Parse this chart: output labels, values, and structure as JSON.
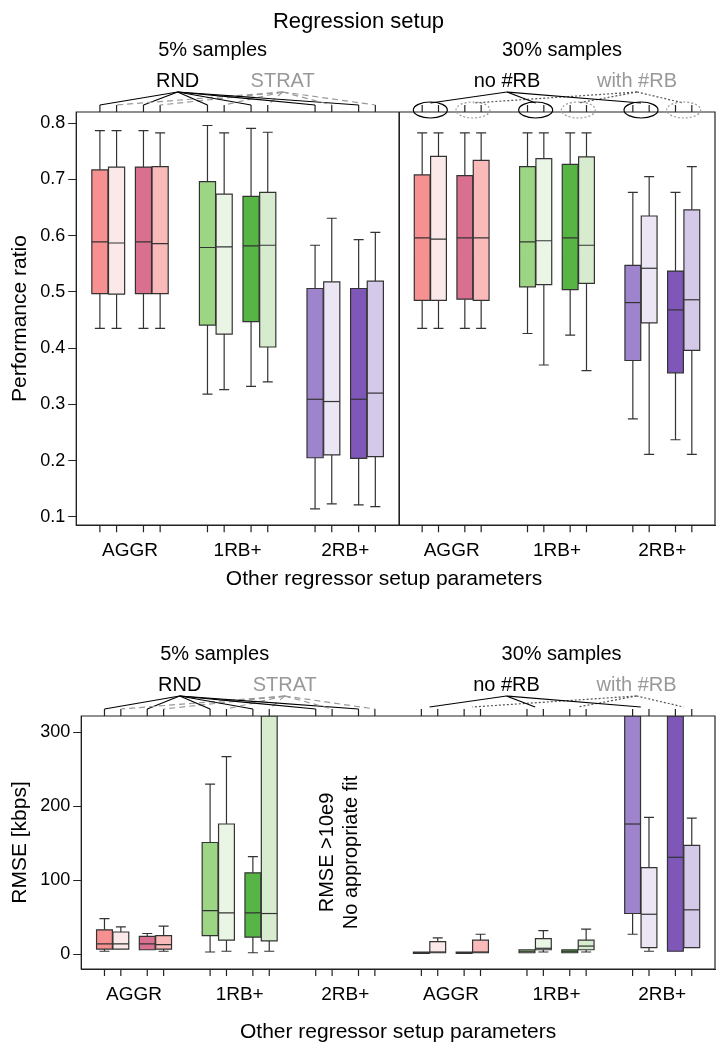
{
  "chart_data": [
    {
      "type": "box",
      "title": "Regression setup",
      "xlabel": "Other regressor setup parameters",
      "ylabel": "Performance ratio",
      "categories": [
        "AGGR",
        "1RB+",
        "2RB+"
      ],
      "ylim": [
        0.085,
        0.82
      ],
      "yticks": [
        0.1,
        0.2,
        0.3,
        0.4,
        0.5,
        0.6,
        0.7,
        0.8
      ],
      "grid": false,
      "legend": false,
      "annotations": [
        "5% samples",
        "RND",
        "STRAT"
      ],
      "series": [
        {
          "colors": [
            "#f79191",
            "#9cd685",
            "#9d84cc"
          ],
          "boxes": [
            {
              "low": 0.435,
              "q1": 0.497,
              "median": 0.589,
              "q3": 0.717,
              "high": 0.787
            },
            {
              "low": 0.318,
              "q1": 0.441,
              "median": 0.579,
              "q3": 0.696,
              "high": 0.796
            },
            {
              "low": 0.114,
              "q1": 0.205,
              "median": 0.309,
              "q3": 0.506,
              "high": 0.583
            }
          ]
        },
        {
          "colors": [
            "#fbe8e8",
            "#eaf5e6",
            "#ebe5f4"
          ],
          "boxes": [
            {
              "low": 0.435,
              "q1": 0.496,
              "median": 0.587,
              "q3": 0.722,
              "high": 0.787
            },
            {
              "low": 0.326,
              "q1": 0.425,
              "median": 0.58,
              "q3": 0.674,
              "high": 0.783
            },
            {
              "low": 0.123,
              "q1": 0.21,
              "median": 0.305,
              "q3": 0.518,
              "high": 0.631
            }
          ]
        },
        {
          "colors": [
            "#da7090",
            "#56b545",
            "#7f57b9"
          ],
          "boxes": [
            {
              "low": 0.435,
              "q1": 0.497,
              "median": 0.589,
              "q3": 0.722,
              "high": 0.787
            },
            {
              "low": 0.332,
              "q1": 0.447,
              "median": 0.582,
              "q3": 0.67,
              "high": 0.791
            },
            {
              "low": 0.121,
              "q1": 0.204,
              "median": 0.309,
              "q3": 0.506,
              "high": 0.593
            }
          ]
        },
        {
          "colors": [
            "#fbbaba",
            "#d7ecce",
            "#d5c9e9"
          ],
          "boxes": [
            {
              "low": 0.435,
              "q1": 0.497,
              "median": 0.586,
              "q3": 0.723,
              "high": 0.783
            },
            {
              "low": 0.34,
              "q1": 0.402,
              "median": 0.583,
              "q3": 0.677,
              "high": 0.784
            },
            {
              "low": 0.118,
              "q1": 0.207,
              "median": 0.32,
              "q3": 0.519,
              "high": 0.606
            }
          ]
        }
      ]
    },
    {
      "type": "box",
      "categories": [
        "AGGR",
        "1RB+",
        "2RB+"
      ],
      "ylim": [
        0.085,
        0.82
      ],
      "yticks": [
        0.1,
        0.2,
        0.3,
        0.4,
        0.5,
        0.6,
        0.7,
        0.8
      ],
      "tick_labels": "x",
      "grid": false,
      "legend": false,
      "annotations": [
        "30% samples",
        "no #RB",
        "with #RB"
      ],
      "series": [
        {
          "colors": [
            "#f79191",
            "#9cd685",
            "#9d84cc"
          ],
          "boxes": [
            {
              "low": 0.435,
              "q1": 0.485,
              "median": 0.596,
              "q3": 0.708,
              "high": 0.783
            },
            {
              "low": 0.426,
              "q1": 0.509,
              "median": 0.589,
              "q3": 0.723,
              "high": 0.783
            },
            {
              "low": 0.274,
              "q1": 0.378,
              "median": 0.481,
              "q3": 0.547,
              "high": 0.677
            }
          ]
        },
        {
          "colors": [
            "#fbe8e8",
            "#eaf5e6",
            "#ebe5f4"
          ],
          "boxes": [
            {
              "low": 0.435,
              "q1": 0.485,
              "median": 0.594,
              "q3": 0.741,
              "high": 0.783
            },
            {
              "low": 0.37,
              "q1": 0.513,
              "median": 0.591,
              "q3": 0.737,
              "high": 0.783
            },
            {
              "low": 0.211,
              "q1": 0.445,
              "median": 0.542,
              "q3": 0.635,
              "high": 0.705
            }
          ]
        },
        {
          "colors": [
            "#da7090",
            "#56b545",
            "#7f57b9"
          ],
          "boxes": [
            {
              "low": 0.435,
              "q1": 0.487,
              "median": 0.596,
              "q3": 0.707,
              "high": 0.783
            },
            {
              "low": 0.423,
              "q1": 0.504,
              "median": 0.596,
              "q3": 0.727,
              "high": 0.783
            },
            {
              "low": 0.237,
              "q1": 0.356,
              "median": 0.468,
              "q3": 0.537,
              "high": 0.677
            }
          ]
        },
        {
          "colors": [
            "#fbbaba",
            "#d7ecce",
            "#d5c9e9"
          ],
          "boxes": [
            {
              "low": 0.435,
              "q1": 0.485,
              "median": 0.596,
              "q3": 0.734,
              "high": 0.783
            },
            {
              "low": 0.36,
              "q1": 0.515,
              "median": 0.583,
              "q3": 0.74,
              "high": 0.783
            },
            {
              "low": 0.211,
              "q1": 0.396,
              "median": 0.486,
              "q3": 0.646,
              "high": 0.723
            }
          ]
        }
      ]
    },
    {
      "type": "box",
      "xlabel": "Other regressor setup parameters",
      "ylabel": "RMSE [kbps]",
      "categories": [
        "AGGR",
        "1RB+",
        "2RB+",
        "AGGR",
        "1RB+",
        "2RB+"
      ],
      "ylim": [
        -20,
        322
      ],
      "yticks": [
        0,
        100,
        200,
        300
      ],
      "grid": false,
      "legend": false,
      "annotations": [
        "5% samples",
        "RND",
        "STRAT",
        "30% samples",
        "no #RB",
        "with #RB",
        "RMSE >10e9",
        "No appropriate fit"
      ],
      "series": [
        {
          "colors": [
            "#f79191",
            "#9cd685",
            null,
            "#f79191",
            "#9cd685",
            "#9d84cc"
          ],
          "boxes": [
            {
              "low": 4,
              "q1": 7,
              "median": 14,
              "q3": 33,
              "high": 48
            },
            {
              "low": 3,
              "q1": 25,
              "median": 59,
              "q3": 151,
              "high": 230
            },
            null,
            {
              "low": 0,
              "q1": 1,
              "median": 2,
              "q3": 3,
              "high": 3
            },
            {
              "low": 2,
              "q1": 2,
              "median": 4,
              "q3": 6,
              "high": 6
            },
            {
              "low": 27,
              "q1": 55,
              "median": 176,
              "q3": 322,
              "high": 322
            }
          ]
        },
        {
          "colors": [
            "#fbe8e8",
            "#eaf5e6",
            null,
            "#fbe8e8",
            "#eaf5e6",
            "#ebe5f4"
          ],
          "boxes": [
            {
              "low": 7,
              "q1": 7,
              "median": 14,
              "q3": 30,
              "high": 37
            },
            {
              "low": 4,
              "q1": 19,
              "median": 56,
              "q3": 176,
              "high": 267
            },
            null,
            {
              "low": 1,
              "q1": 2,
              "median": 3,
              "q3": 17,
              "high": 22
            },
            {
              "low": 3,
              "q1": 6,
              "median": 8,
              "q3": 21,
              "high": 32
            },
            {
              "low": 4,
              "q1": 9,
              "median": 54,
              "q3": 117,
              "high": 185
            }
          ]
        },
        {
          "colors": [
            "#da7090",
            "#56b545",
            null,
            "#da7090",
            "#56b545",
            "#7f57b9"
          ],
          "boxes": [
            {
              "low": 5,
              "q1": 6,
              "median": 14,
              "q3": 24,
              "high": 28
            },
            {
              "low": 2,
              "q1": 23,
              "median": 56,
              "q3": 110,
              "high": 132
            },
            null,
            {
              "low": 0,
              "q1": 1,
              "median": 2,
              "q3": 3,
              "high": 4
            },
            {
              "low": 2,
              "q1": 2,
              "median": 4,
              "q3": 6,
              "high": 7
            },
            {
              "low": 3,
              "q1": 4,
              "median": 131,
              "q3": 322,
              "high": 322
            }
          ]
        },
        {
          "colors": [
            "#fbbaba",
            "#d7ecce",
            null,
            "#fbbaba",
            "#d7ecce",
            "#d5c9e9"
          ],
          "boxes": [
            {
              "low": 4,
              "q1": 7,
              "median": 13,
              "q3": 25,
              "high": 38
            },
            {
              "low": 4,
              "q1": 18,
              "median": 55,
              "q3": 322,
              "high": 322
            },
            null,
            {
              "low": 1,
              "q1": 2,
              "median": 3,
              "q3": 19,
              "high": 27
            },
            {
              "low": 3,
              "q1": 6,
              "median": 11,
              "q3": 19,
              "high": 34
            },
            {
              "low": 9,
              "q1": 9,
              "median": 60,
              "q3": 147,
              "high": 184
            }
          ]
        }
      ]
    }
  ]
}
